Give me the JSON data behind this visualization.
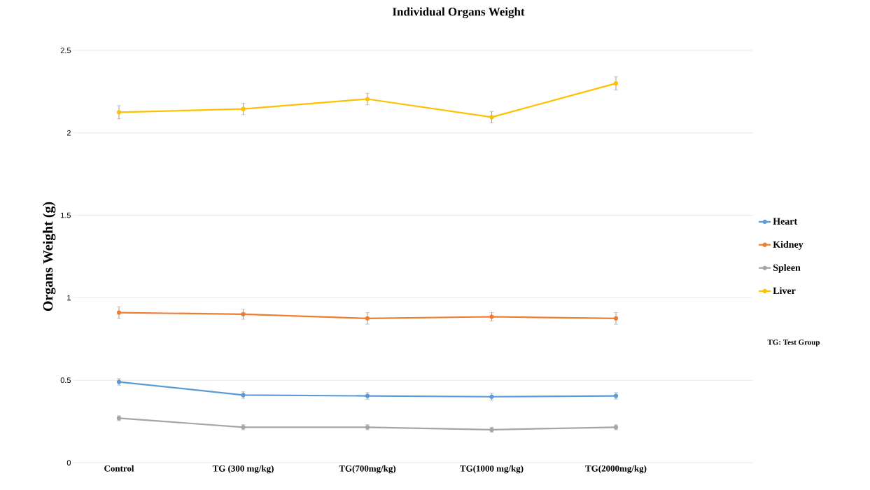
{
  "chart_data": {
    "type": "line",
    "title": "Individual Organs Weight",
    "ylabel": "Organs Weight  (g)",
    "categories": [
      "Control",
      "TG (300 mg/kg)",
      "TG(700mg/kg)",
      "TG(1000 mg/kg)",
      "TG(2000mg/kg)"
    ],
    "series": [
      {
        "name": "Heart",
        "color": "#5b9bd5",
        "values": [
          0.49,
          0.41,
          0.405,
          0.4,
          0.405
        ],
        "errors": [
          0.02,
          0.02,
          0.02,
          0.02,
          0.02
        ]
      },
      {
        "name": "Kidney",
        "color": "#ed7d31",
        "values": [
          0.91,
          0.9,
          0.875,
          0.885,
          0.875
        ],
        "errors": [
          0.035,
          0.03,
          0.035,
          0.025,
          0.035
        ]
      },
      {
        "name": "Spleen",
        "color": "#a5a5a5",
        "values": [
          0.27,
          0.215,
          0.215,
          0.2,
          0.215
        ],
        "errors": [
          0.015,
          0.015,
          0.015,
          0.015,
          0.015
        ]
      },
      {
        "name": "Liver",
        "color": "#ffc000",
        "values": [
          2.125,
          2.145,
          2.205,
          2.095,
          2.3
        ],
        "errors": [
          0.04,
          0.035,
          0.035,
          0.035,
          0.04
        ]
      }
    ],
    "ylim": [
      0,
      2.5
    ],
    "yticks": [
      0,
      0.5,
      1,
      1.5,
      2,
      2.5
    ],
    "grid": "y",
    "legend": "right",
    "marker": "circle",
    "line_style": "solid",
    "annotations": [
      "TG: Test Group"
    ]
  }
}
